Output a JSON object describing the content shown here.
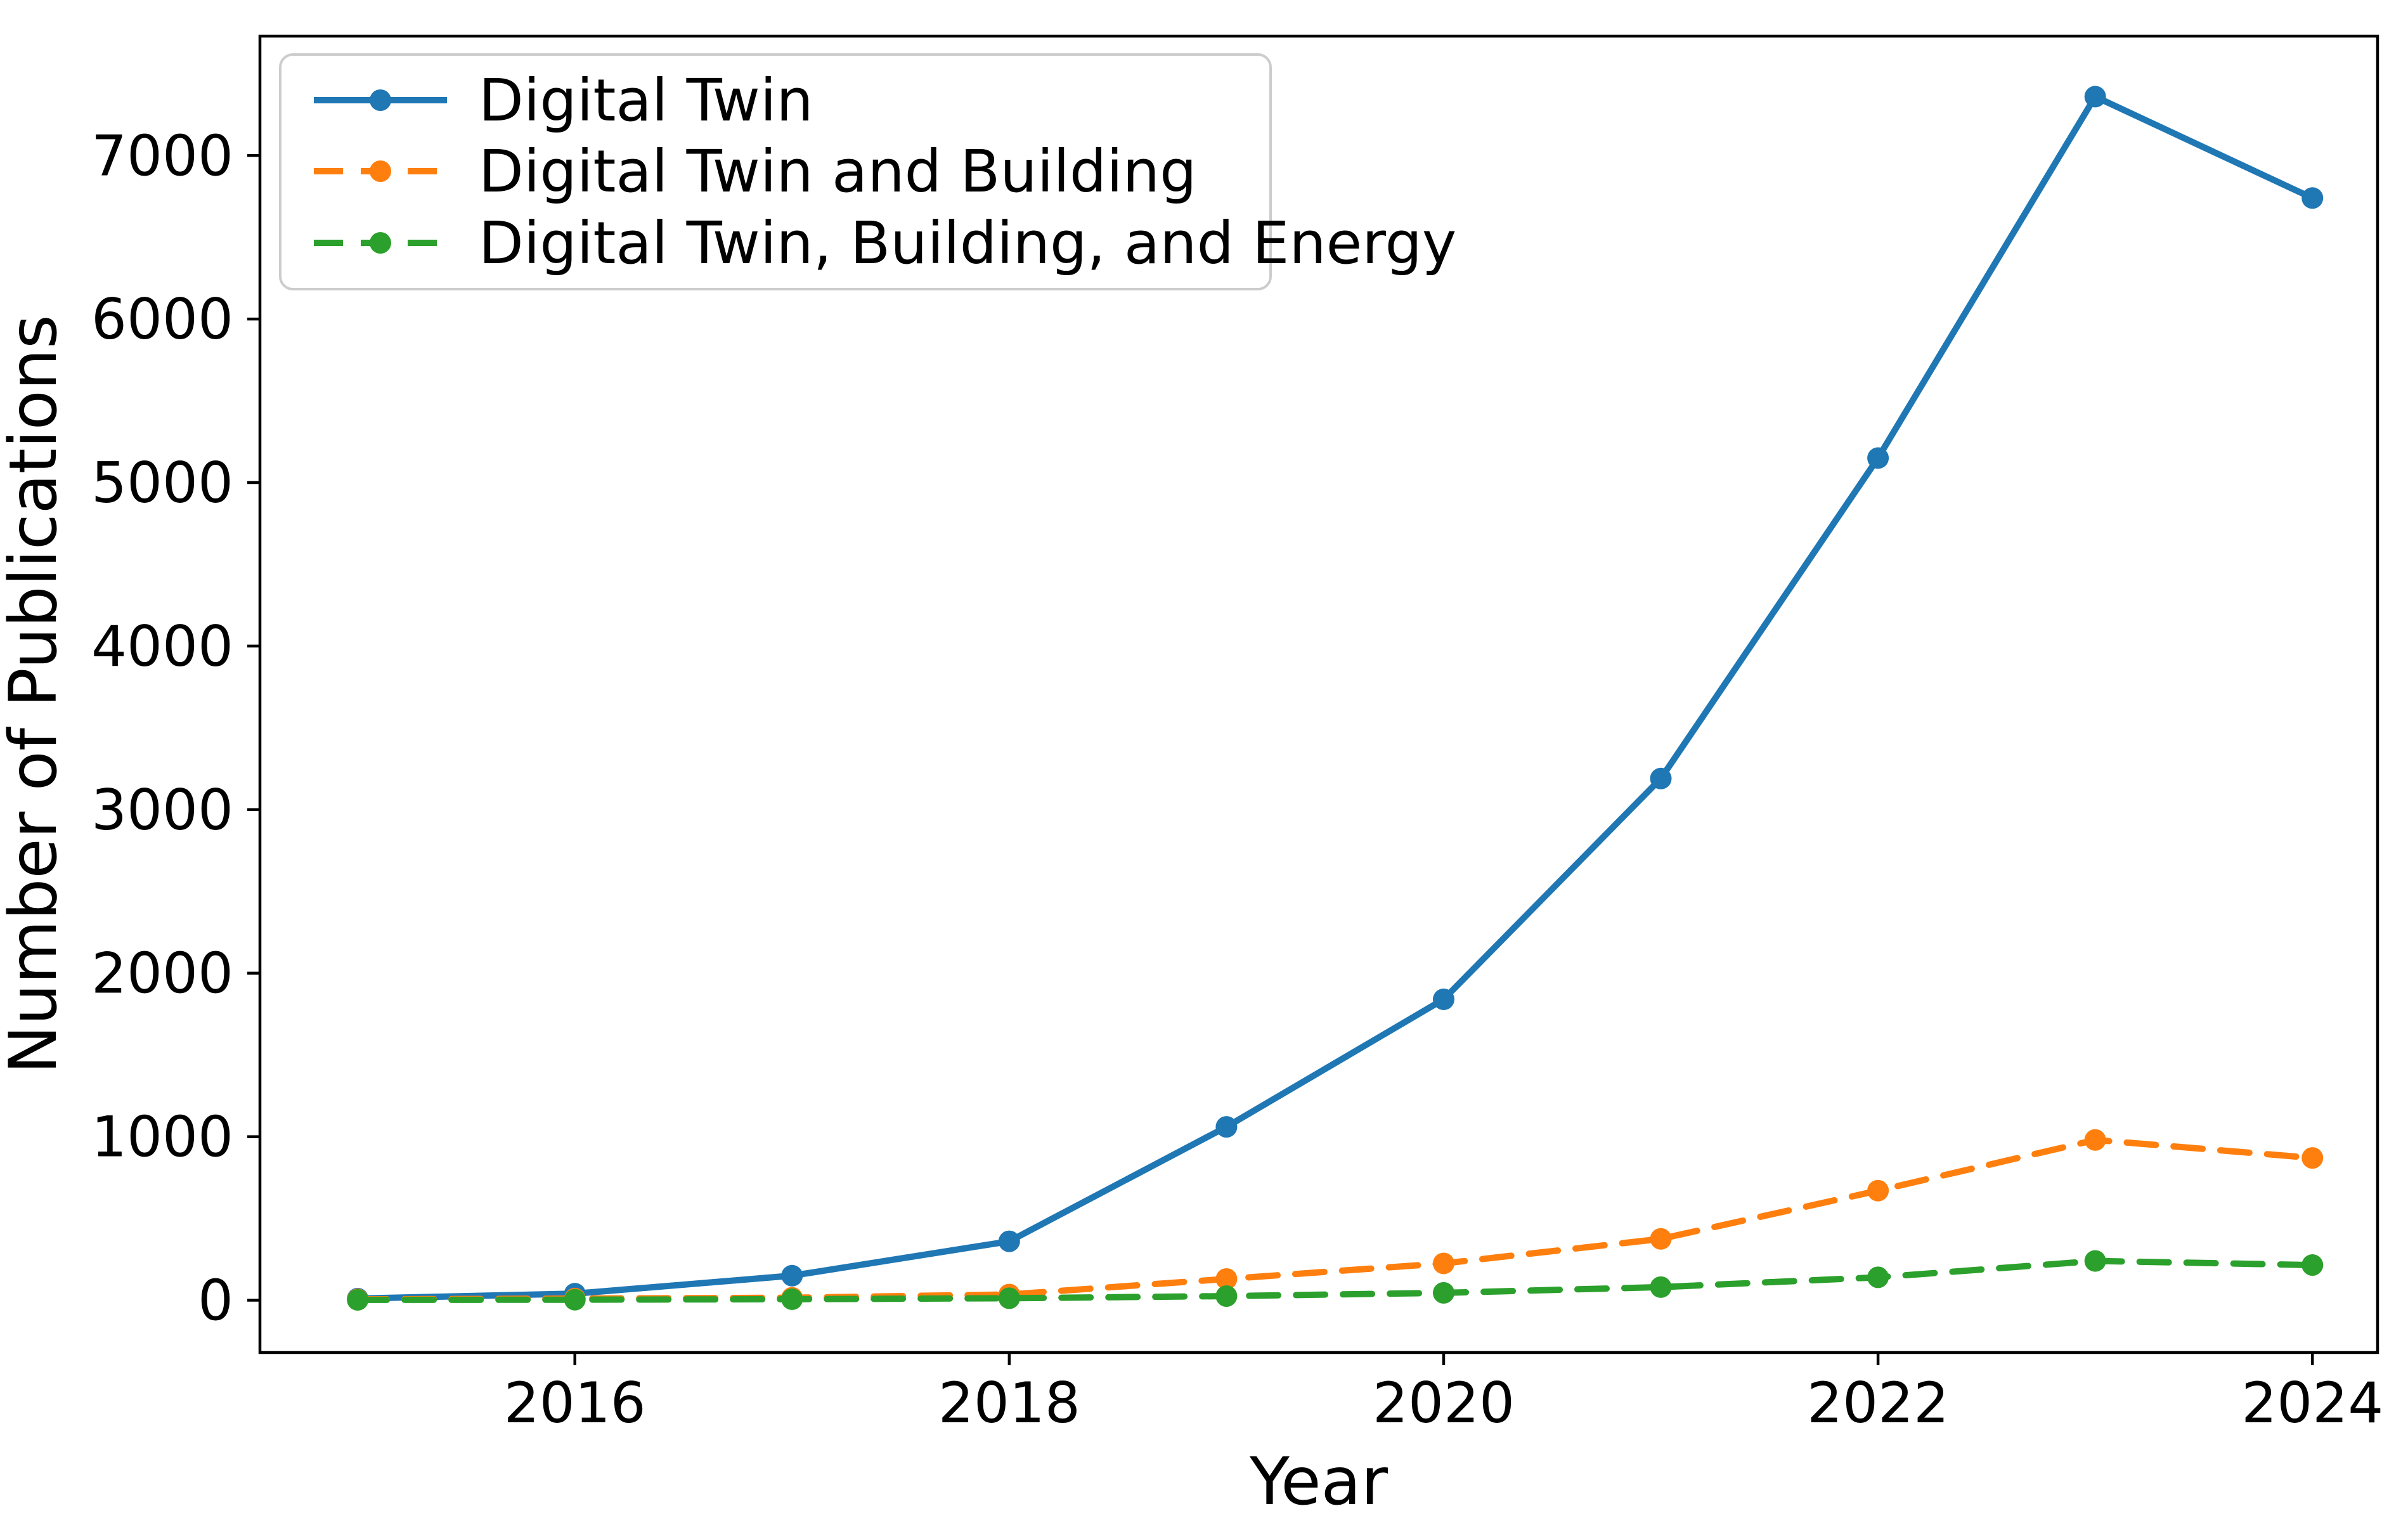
{
  "figure": {
    "background": "#ffffff",
    "spine_color": "#000000",
    "text_color": "#000000",
    "legend_border_color": "#cccccc",
    "legend_background": "#ffffff"
  },
  "chart_data": {
    "type": "line",
    "title": "",
    "xlabel": "Year",
    "ylabel": "Number of Publications",
    "x": [
      2015,
      2016,
      2017,
      2018,
      2019,
      2020,
      2021,
      2022,
      2023,
      2024
    ],
    "series": [
      {
        "name": "Digital Twin",
        "color": "#1f77b4",
        "line_style": "solid",
        "marker": "circle",
        "values": [
          10,
          40,
          150,
          360,
          1060,
          1840,
          3190,
          5150,
          7360,
          6740
        ]
      },
      {
        "name": "Digital Twin and Building",
        "color": "#ff7f0e",
        "line_style": "dashed",
        "marker": "circle",
        "values": [
          5,
          10,
          15,
          35,
          130,
          225,
          375,
          670,
          980,
          870
        ]
      },
      {
        "name": "Digital Twin, Building, and Energy",
        "color": "#2ca02c",
        "line_style": "dashed",
        "marker": "circle",
        "values": [
          2,
          3,
          6,
          12,
          25,
          45,
          80,
          140,
          240,
          215
        ]
      }
    ],
    "xticks": [
      2016,
      2018,
      2020,
      2022,
      2024
    ],
    "yticks": [
      0,
      1000,
      2000,
      3000,
      4000,
      5000,
      6000,
      7000
    ],
    "xlim": [
      2014.55,
      2024.3
    ],
    "ylim": [
      -320,
      7730
    ],
    "grid": false,
    "legend_position": "upper-left"
  }
}
